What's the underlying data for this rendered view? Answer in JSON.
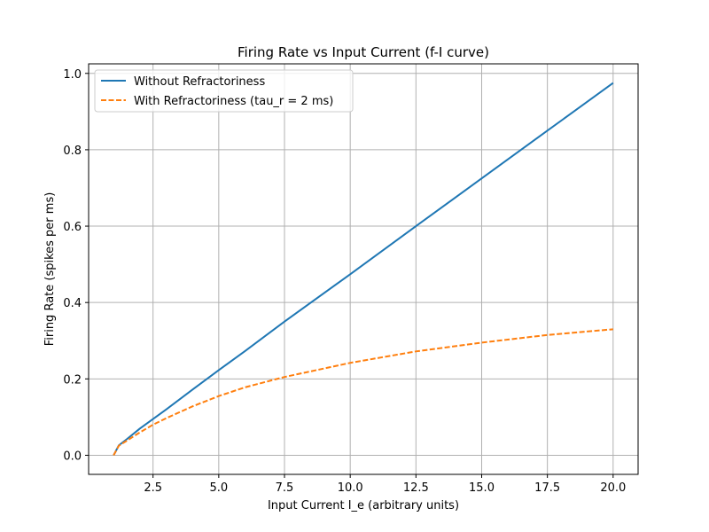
{
  "chart_data": {
    "type": "line",
    "title": "Firing Rate vs Input Current (f-I curve)",
    "xlabel": "Input Current I_e (arbitrary units)",
    "ylabel": "Firing Rate (spikes per ms)",
    "xlim": [
      0.05,
      20.95
    ],
    "ylim": [
      -0.05,
      1.025
    ],
    "xticks": [
      2.5,
      5.0,
      7.5,
      10.0,
      12.5,
      15.0,
      17.5,
      20.0
    ],
    "xtick_labels": [
      "2.5",
      "5.0",
      "7.5",
      "10.0",
      "12.5",
      "15.0",
      "17.5",
      "20.0"
    ],
    "yticks": [
      0.0,
      0.2,
      0.4,
      0.6,
      0.8,
      1.0
    ],
    "ytick_labels": [
      "0.0",
      "0.2",
      "0.4",
      "0.6",
      "0.8",
      "1.0"
    ],
    "grid": true,
    "legend_position": "upper left",
    "series": [
      {
        "name": "Without Refractoriness",
        "color": "#1f77b4",
        "style": "solid",
        "x": [
          1.0,
          1.2,
          1.5,
          2.0,
          2.5,
          3.0,
          4.0,
          5.0,
          6.0,
          7.5,
          10.0,
          12.5,
          15.0,
          17.5,
          20.0
        ],
        "y": [
          0.0,
          0.026,
          0.042,
          0.07,
          0.095,
          0.12,
          0.172,
          0.223,
          0.273,
          0.35,
          0.474,
          0.6,
          0.725,
          0.85,
          0.975
        ]
      },
      {
        "name": "With Refractoriness (tau_r = 2 ms)",
        "color": "#ff7f0e",
        "style": "dashed",
        "x": [
          1.0,
          1.2,
          1.5,
          2.0,
          2.5,
          3.0,
          4.0,
          5.0,
          6.0,
          7.5,
          10.0,
          12.5,
          15.0,
          17.5,
          20.0
        ],
        "y": [
          0.0,
          0.025,
          0.038,
          0.06,
          0.08,
          0.097,
          0.128,
          0.155,
          0.178,
          0.205,
          0.242,
          0.272,
          0.295,
          0.315,
          0.33
        ]
      }
    ]
  }
}
